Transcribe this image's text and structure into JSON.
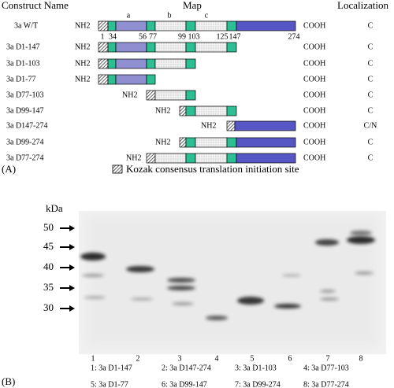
{
  "header": {
    "construct_name": "Construct Name",
    "map": "Map",
    "localization": "Localization"
  },
  "domain_letters": [
    "a",
    "b",
    "c"
  ],
  "positions": [
    "1",
    "34",
    "56",
    "77",
    "99",
    "103",
    "125",
    "147",
    "274"
  ],
  "constructs": [
    {
      "name": "3a W/T",
      "nh2": "NH2",
      "cooh": "COOH",
      "localization": "C"
    },
    {
      "name": "3a D1-147",
      "nh2": "NH2",
      "cooh": "COOH",
      "localization": "C"
    },
    {
      "name": "3a D1-103",
      "nh2": "NH2",
      "cooh": "COOH",
      "localization": "C"
    },
    {
      "name": "3a D1-77",
      "nh2": "NH2",
      "cooh": "COOH",
      "localization": "C"
    },
    {
      "name": "3a D77-103",
      "nh2": "NH2",
      "cooh": "COOH",
      "localization": "C"
    },
    {
      "name": "3a D99-147",
      "nh2": "NH2",
      "cooh": "COOH",
      "localization": "C"
    },
    {
      "name": "3a D147-274",
      "nh2": "NH2",
      "cooh": "COOH",
      "localization": "C/N"
    },
    {
      "name": "3a D99-274",
      "nh2": "NH2",
      "cooh": "COOH",
      "localization": "C"
    },
    {
      "name": "3a D77-274",
      "nh2": "NH2",
      "cooh": "COOH",
      "localization": "C"
    }
  ],
  "panel_a_label": "(A)",
  "legend": "Kozak consensus translation initiation site",
  "blot": {
    "unit": "kDa",
    "markers": [
      "50",
      "45",
      "40",
      "35",
      "30"
    ],
    "lanes": [
      "1",
      "2",
      "3",
      "4",
      "5",
      "6",
      "7",
      "8"
    ],
    "lane_legend": [
      "1: 3a D1-147",
      "2: 3a D147-274",
      "3: 3a D1-103",
      "4: 3a D77-103",
      "5: 3a D1-77",
      "6: 3a D99-147",
      "7: 3a D99-274",
      "8: 3a D77-274"
    ]
  },
  "panel_b_label": "(B)"
}
